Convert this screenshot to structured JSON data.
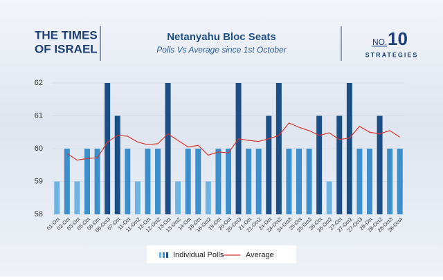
{
  "logos": {
    "left": [
      "THE TIMES",
      "OF ISRAEL"
    ],
    "right_prefix": "NO.",
    "right_number": "10",
    "right_word": "STRATEGIES"
  },
  "chart_data": {
    "type": "bar",
    "title": "Netanyahu Bloc Seats",
    "subtitle": "Polls Vs Average since 1st October",
    "categories": [
      "01-Oct",
      "02-Oct",
      "03-Oct",
      "05-Oct",
      "06-Oct",
      "06-Oct3",
      "07-Oct",
      "11-Oct",
      "11-Oct2",
      "12-Oct",
      "12-Oct2",
      "13-Oct",
      "13-Oct2",
      "14-Oct",
      "18-Oct",
      "18-Oct2",
      "19-Oct",
      "20-Oct",
      "20-Oct3",
      "21-Oct",
      "21-Oct2",
      "24-Oct",
      "24-Oct2",
      "24-Oct3",
      "25-Oct",
      "25-Oct2",
      "26-Oct",
      "26-Oct2",
      "27-Oct",
      "27-Oct2",
      "27-Oct3",
      "28-Oct",
      "28-Oct2",
      "28-Oct3",
      "28-Oct4"
    ],
    "series": [
      {
        "name": "Individual Polls",
        "type": "bar",
        "values": [
          59,
          60,
          59,
          60,
          60,
          62,
          61,
          60,
          59,
          60,
          60,
          62,
          59,
          60,
          60,
          59,
          60,
          60,
          62,
          60,
          60,
          61,
          62,
          60,
          60,
          60,
          61,
          59,
          61,
          62,
          60,
          60,
          61,
          60,
          60
        ],
        "colors": [
          "#6fb3e2",
          "#3d8fcb",
          "#6fb3e2",
          "#3d8fcb",
          "#3d8fcb",
          "#1c4f87",
          "#1c4f87",
          "#3d8fcb",
          "#6fb3e2",
          "#3d8fcb",
          "#3d8fcb",
          "#1c4f87",
          "#6fb3e2",
          "#3d8fcb",
          "#3d8fcb",
          "#6fb3e2",
          "#3d8fcb",
          "#3d8fcb",
          "#1c4f87",
          "#3d8fcb",
          "#3d8fcb",
          "#1c4f87",
          "#1c4f87",
          "#3d8fcb",
          "#3d8fcb",
          "#3d8fcb",
          "#1c4f87",
          "#6fb3e2",
          "#1c4f87",
          "#1c4f87",
          "#3d8fcb",
          "#3d8fcb",
          "#1c4f87",
          "#3d8fcb",
          "#3d8fcb"
        ]
      },
      {
        "name": "Average",
        "type": "line",
        "color": "#d9342b",
        "values": [
          null,
          59.85,
          59.65,
          59.7,
          59.72,
          60.2,
          60.4,
          60.38,
          60.2,
          60.12,
          60.15,
          60.45,
          60.25,
          60.05,
          60.1,
          59.8,
          59.9,
          59.87,
          60.3,
          60.25,
          60.22,
          60.3,
          60.4,
          60.78,
          60.65,
          60.55,
          60.4,
          60.48,
          60.28,
          60.32,
          60.68,
          60.5,
          60.45,
          60.55,
          60.35
        ]
      }
    ],
    "ylim": [
      58,
      62
    ],
    "yticks": [
      58,
      59,
      60,
      61,
      62
    ]
  }
}
